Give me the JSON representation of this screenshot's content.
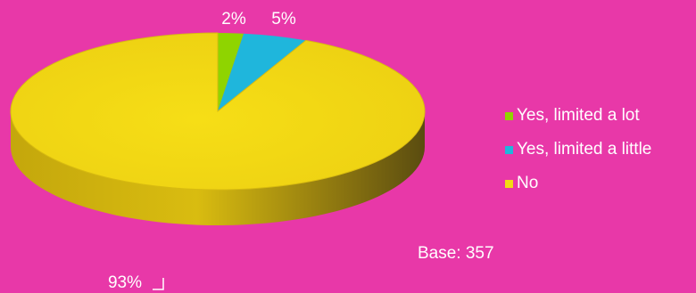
{
  "chart_data": {
    "type": "pie",
    "title": "",
    "slices": [
      {
        "name": "Yes, limited a lot",
        "value": 2,
        "label": "2%",
        "color": "#8fd400"
      },
      {
        "name": "Yes, limited a little",
        "value": 5,
        "label": "5%",
        "color": "#1fb6dc"
      },
      {
        "name": "No",
        "value": 93,
        "label": "93%",
        "color": "#f2db14"
      }
    ],
    "legend_position": "right",
    "base_note": "Base: 357",
    "style": "3d-pie"
  },
  "colors": {
    "background": "#e838a8",
    "no_dark": "#6b5a10",
    "no_mid": "#c7aa10"
  }
}
